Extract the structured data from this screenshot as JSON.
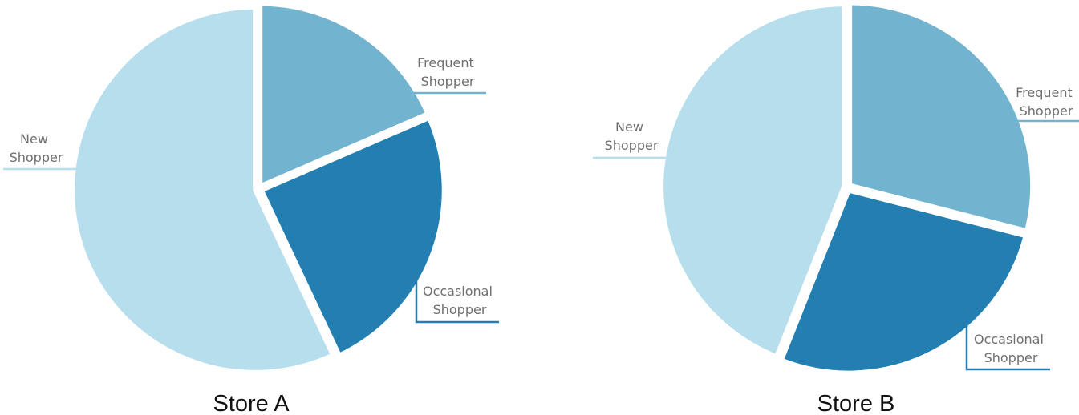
{
  "chart_data": [
    {
      "type": "pie",
      "title": "Store A",
      "slices": [
        {
          "label_lines": [
            "Frequent",
            "Shopper"
          ],
          "value": 18.5,
          "color": "#72b3cf"
        },
        {
          "label_lines": [
            "Occasional",
            "Shopper"
          ],
          "value": 24.5,
          "color": "#237eb1"
        },
        {
          "label_lines": [
            "New",
            "Shopper"
          ],
          "value": 57,
          "color": "#b6deed"
        }
      ]
    },
    {
      "type": "pie",
      "title": "Store B",
      "slices": [
        {
          "label_lines": [
            "Frequent",
            "Shopper"
          ],
          "value": 29,
          "color": "#72b3cf"
        },
        {
          "label_lines": [
            "Occasional",
            "Shopper"
          ],
          "value": 27,
          "color": "#237eb1"
        },
        {
          "label_lines": [
            "New",
            "Shopper"
          ],
          "value": 44,
          "color": "#b6deed"
        }
      ]
    }
  ]
}
